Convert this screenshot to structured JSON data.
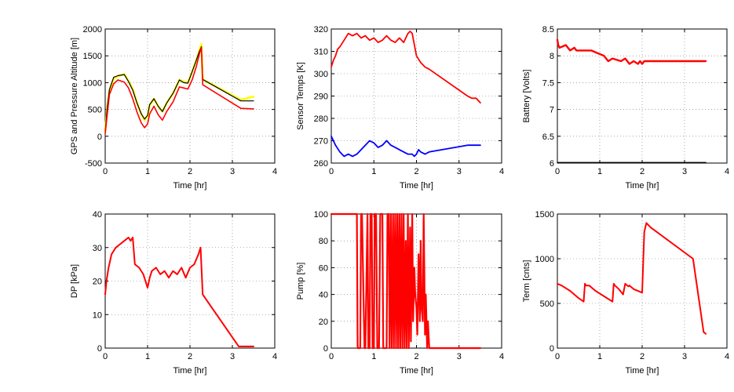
{
  "chart_data": [
    {
      "type": "line",
      "xlabel": "Time [hr]",
      "ylabel": "GPS and Pressure Altitude [m]",
      "xlim": [
        0,
        4
      ],
      "ylim": [
        -500,
        2000
      ],
      "xticks": [
        0,
        1,
        2,
        3,
        4
      ],
      "yticks": [
        -500,
        0,
        500,
        1000,
        1500,
        2000
      ],
      "xtick_labels": [
        "0",
        "1",
        "2",
        "3",
        "4"
      ],
      "ytick_labels": [
        "-500",
        "0",
        "500",
        "1000",
        "1500",
        "2000"
      ],
      "grid": true,
      "series": [
        {
          "color": "#ffff00",
          "width": 2.6,
          "x": [
            0,
            0.05,
            0.1,
            0.2,
            0.3,
            0.45,
            0.55,
            0.65,
            0.75,
            0.85,
            0.93,
            1.0,
            1.05,
            1.15,
            1.25,
            1.35,
            1.45,
            1.6,
            1.75,
            1.85,
            1.95,
            2.05,
            2.15,
            2.22,
            2.27,
            2.3,
            3.2,
            3.5
          ],
          "y": [
            100,
            550,
            850,
            1070,
            1120,
            1160,
            1030,
            880,
            630,
            410,
            300,
            380,
            580,
            700,
            560,
            460,
            620,
            800,
            1050,
            1020,
            1000,
            1200,
            1420,
            1600,
            1720,
            1060,
            680,
            740
          ]
        },
        {
          "color": "#000000",
          "width": 1.2,
          "x": [
            0,
            0.05,
            0.1,
            0.2,
            0.3,
            0.45,
            0.55,
            0.65,
            0.75,
            0.85,
            0.93,
            1.0,
            1.05,
            1.15,
            1.25,
            1.35,
            1.45,
            1.6,
            1.75,
            1.85,
            1.95,
            2.05,
            2.15,
            2.22,
            2.27,
            2.3,
            3.2,
            3.5
          ],
          "y": [
            80,
            550,
            870,
            1100,
            1130,
            1150,
            1020,
            860,
            620,
            420,
            320,
            390,
            590,
            700,
            560,
            460,
            620,
            800,
            1050,
            1000,
            990,
            1200,
            1420,
            1580,
            1670,
            1060,
            660,
            660
          ]
        },
        {
          "color": "#ff0000",
          "width": 1.6,
          "x": [
            0,
            0.05,
            0.1,
            0.2,
            0.3,
            0.45,
            0.55,
            0.65,
            0.75,
            0.85,
            0.93,
            1.0,
            1.05,
            1.15,
            1.25,
            1.35,
            1.45,
            1.6,
            1.75,
            1.85,
            1.95,
            2.05,
            2.15,
            2.22,
            2.27,
            2.3,
            3.2,
            3.5
          ],
          "y": [
            50,
            420,
            780,
            980,
            1050,
            1010,
            900,
            700,
            450,
            250,
            160,
            230,
            420,
            560,
            400,
            300,
            460,
            640,
            920,
            900,
            880,
            1050,
            1300,
            1530,
            1650,
            960,
            520,
            510
          ]
        }
      ]
    },
    {
      "type": "line",
      "xlabel": "Time [hr]",
      "ylabel": "Sensor Temps [K]",
      "xlim": [
        0,
        4
      ],
      "ylim": [
        260,
        320
      ],
      "xticks": [
        0,
        1,
        2,
        3,
        4
      ],
      "yticks": [
        260,
        270,
        280,
        290,
        300,
        310,
        320
      ],
      "xtick_labels": [
        "0",
        "1",
        "2",
        "3",
        "4"
      ],
      "ytick_labels": [
        "260",
        "270",
        "280",
        "290",
        "300",
        "310",
        "320"
      ],
      "grid": true,
      "series": [
        {
          "color": "#ff0000",
          "width": 1.8,
          "x": [
            0,
            0.05,
            0.1,
            0.15,
            0.2,
            0.3,
            0.4,
            0.5,
            0.6,
            0.7,
            0.8,
            0.9,
            1.0,
            1.1,
            1.2,
            1.3,
            1.4,
            1.5,
            1.6,
            1.7,
            1.8,
            1.85,
            1.9,
            1.95,
            2.0,
            2.1,
            2.2,
            2.3,
            3.2,
            3.3,
            3.4,
            3.5
          ],
          "y": [
            303,
            306,
            308,
            311,
            312,
            315,
            318,
            317,
            318,
            316,
            317,
            315,
            316,
            314,
            315,
            317,
            315,
            314,
            316,
            314,
            318,
            319,
            318,
            313,
            308,
            305,
            303,
            302,
            290,
            289,
            289,
            287
          ]
        },
        {
          "color": "#0000ff",
          "width": 1.8,
          "x": [
            0,
            0.05,
            0.1,
            0.2,
            0.3,
            0.4,
            0.5,
            0.6,
            0.7,
            0.8,
            0.9,
            1.0,
            1.1,
            1.2,
            1.3,
            1.4,
            1.5,
            1.6,
            1.7,
            1.8,
            1.9,
            1.95,
            2.0,
            2.05,
            2.1,
            2.2,
            2.3,
            3.2,
            3.5
          ],
          "y": [
            272,
            270,
            268,
            265,
            263,
            264,
            263,
            264,
            266,
            268,
            270,
            269,
            267,
            268,
            270,
            268,
            267,
            266,
            265,
            264,
            264,
            263,
            264,
            266,
            265,
            264,
            265,
            268,
            268
          ]
        }
      ]
    },
    {
      "type": "line",
      "xlabel": "Time [hr]",
      "ylabel": "Battery [Volts]",
      "xlim": [
        0,
        4
      ],
      "ylim": [
        6,
        8.5
      ],
      "xticks": [
        0,
        1,
        2,
        3,
        4
      ],
      "yticks": [
        6,
        6.5,
        7,
        7.5,
        8,
        8.5
      ],
      "xtick_labels": [
        "0",
        "1",
        "2",
        "3",
        "4"
      ],
      "ytick_labels": [
        "6",
        "6.5",
        "7",
        "7.5",
        "8",
        "8.5"
      ],
      "grid": true,
      "series": [
        {
          "color": "#000000",
          "width": 1.4,
          "x": [
            0,
            3.5
          ],
          "y": [
            6.01,
            6.01
          ]
        },
        {
          "color": "#ff0000",
          "width": 2.4,
          "x": [
            0,
            0.02,
            0.05,
            0.2,
            0.3,
            0.4,
            0.45,
            0.5,
            0.6,
            0.8,
            1.1,
            1.2,
            1.3,
            1.5,
            1.6,
            1.7,
            1.8,
            1.9,
            1.95,
            2.0,
            2.05,
            2.2,
            3.2,
            3.5
          ],
          "y": [
            8.3,
            8.2,
            8.15,
            8.2,
            8.1,
            8.15,
            8.1,
            8.1,
            8.1,
            8.1,
            8.0,
            7.9,
            7.95,
            7.9,
            7.95,
            7.85,
            7.9,
            7.85,
            7.9,
            7.85,
            7.9,
            7.9,
            7.9,
            7.9
          ]
        }
      ]
    },
    {
      "type": "line",
      "xlabel": "Time [hr]",
      "ylabel": "DP [kPa]",
      "xlim": [
        0,
        4
      ],
      "ylim": [
        0,
        40
      ],
      "xticks": [
        0,
        1,
        2,
        3,
        4
      ],
      "yticks": [
        0,
        10,
        20,
        30,
        40
      ],
      "xtick_labels": [
        "0",
        "1",
        "2",
        "3",
        "4"
      ],
      "ytick_labels": [
        "0",
        "10",
        "20",
        "30",
        "40"
      ],
      "grid": true,
      "series": [
        {
          "color": "#ff0000",
          "width": 2.0,
          "x": [
            0,
            0.03,
            0.08,
            0.15,
            0.25,
            0.35,
            0.45,
            0.55,
            0.6,
            0.65,
            0.7,
            0.8,
            0.9,
            1.0,
            1.05,
            1.1,
            1.2,
            1.3,
            1.4,
            1.5,
            1.6,
            1.7,
            1.8,
            1.9,
            2.0,
            2.1,
            2.2,
            2.25,
            2.3,
            3.15,
            3.5
          ],
          "y": [
            16,
            20,
            24,
            28,
            30,
            31,
            32,
            33,
            32,
            33,
            25,
            24,
            22,
            18,
            21,
            23,
            24,
            22,
            23,
            21,
            23,
            22,
            24,
            21,
            24,
            25,
            28,
            30,
            16,
            0.5,
            0.5
          ]
        }
      ]
    },
    {
      "type": "line",
      "xlabel": "Time [hr]",
      "ylabel": "Pump [%]",
      "xlim": [
        0,
        4
      ],
      "ylim": [
        0,
        100
      ],
      "xticks": [
        0,
        1,
        2,
        3,
        4
      ],
      "yticks": [
        0,
        20,
        40,
        60,
        80,
        100
      ],
      "xtick_labels": [
        "0",
        "1",
        "2",
        "3",
        "4"
      ],
      "ytick_labels": [
        "0",
        "20",
        "40",
        "60",
        "80",
        "100"
      ],
      "grid": true,
      "series": [
        {
          "color": "#ff0000",
          "width": 2.2,
          "x": [
            0,
            0.6,
            0.62,
            0.68,
            0.7,
            0.72,
            0.78,
            0.8,
            0.85,
            0.87,
            0.9,
            0.92,
            0.95,
            0.97,
            1.0,
            1.02,
            1.05,
            1.08,
            1.12,
            1.15,
            1.2,
            1.22,
            1.3,
            1.32,
            1.35,
            1.37,
            1.4,
            1.42,
            1.45,
            1.47,
            1.5,
            1.52,
            1.55,
            1.57,
            1.6,
            1.62,
            1.65,
            1.67,
            1.7,
            1.72,
            1.75,
            1.77,
            1.8,
            1.82,
            1.85,
            1.87,
            1.9,
            1.92,
            1.95,
            1.97,
            2.0,
            2.02,
            2.05,
            2.08,
            2.1,
            2.12,
            2.15,
            2.17,
            2.2,
            2.22,
            2.25,
            2.27,
            2.3,
            3.5
          ],
          "y": [
            100,
            100,
            0,
            0,
            100,
            100,
            0,
            0,
            100,
            0,
            0,
            100,
            100,
            0,
            0,
            100,
            100,
            0,
            0,
            100,
            100,
            0,
            0,
            100,
            100,
            0,
            100,
            0,
            100,
            0,
            100,
            0,
            100,
            0,
            100,
            0,
            100,
            0,
            100,
            0,
            80,
            0,
            100,
            0,
            90,
            5,
            100,
            20,
            60,
            40,
            30,
            10,
            70,
            20,
            80,
            30,
            20,
            100,
            10,
            40,
            0,
            20,
            0,
            0
          ]
        }
      ]
    },
    {
      "type": "line",
      "xlabel": "Time [hr]",
      "ylabel": "Term [cnts]",
      "xlim": [
        0,
        4
      ],
      "ylim": [
        0,
        1500
      ],
      "xticks": [
        0,
        1,
        2,
        3,
        4
      ],
      "yticks": [
        0,
        500,
        1000,
        1500
      ],
      "xtick_labels": [
        "0",
        "1",
        "2",
        "3",
        "4"
      ],
      "ytick_labels": [
        "0",
        "500",
        "1000",
        "1500"
      ],
      "grid": true,
      "series": [
        {
          "color": "#ff0000",
          "width": 2.0,
          "x": [
            0,
            0.1,
            0.3,
            0.5,
            0.62,
            0.65,
            0.68,
            0.75,
            0.9,
            1.1,
            1.3,
            1.33,
            1.36,
            1.45,
            1.55,
            1.6,
            1.65,
            1.68,
            1.7,
            1.8,
            2.0,
            2.05,
            2.1,
            2.2,
            3.2,
            3.45,
            3.5
          ],
          "y": [
            720,
            700,
            640,
            560,
            520,
            720,
            700,
            700,
            640,
            580,
            520,
            720,
            700,
            660,
            600,
            720,
            700,
            690,
            700,
            660,
            620,
            1300,
            1400,
            1350,
            1000,
            180,
            160
          ]
        }
      ]
    }
  ]
}
